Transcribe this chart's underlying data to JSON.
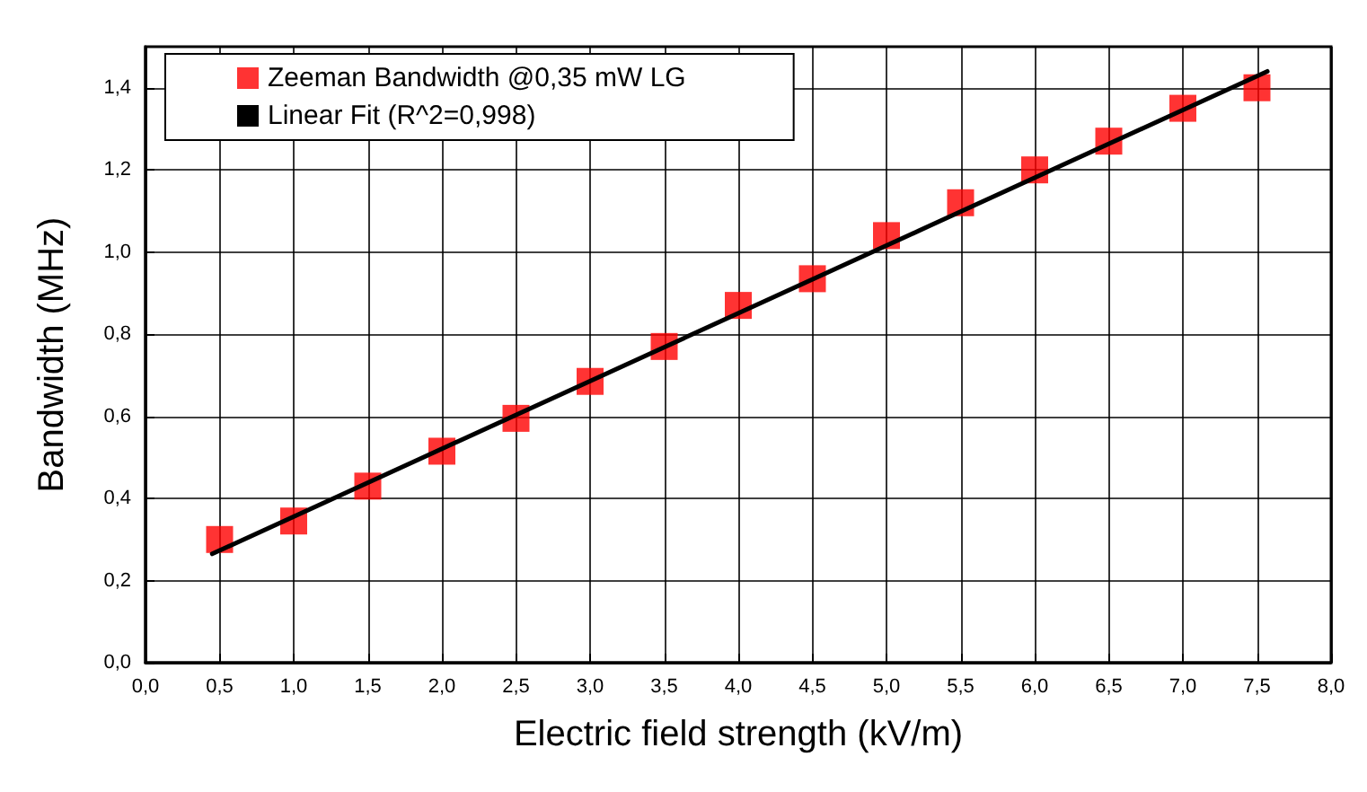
{
  "chart_data": {
    "type": "scatter",
    "xlabel": "Electric field strength (kV/m)",
    "ylabel": "Bandwidth (MHz)",
    "x": [
      0.5,
      1.0,
      1.5,
      2.0,
      2.5,
      3.0,
      3.5,
      4.0,
      4.5,
      5.0,
      5.5,
      6.0,
      6.5,
      7.0,
      7.5
    ],
    "series": [
      {
        "name": "Zeeman Bandwidth @0,35 mW LG",
        "marker": "square",
        "color": "#ff0000",
        "values": [
          0.3,
          0.345,
          0.43,
          0.515,
          0.595,
          0.685,
          0.77,
          0.87,
          0.935,
          1.04,
          1.12,
          1.2,
          1.27,
          1.35,
          1.4
        ]
      },
      {
        "name": "Linear Fit (R^2=0,998)",
        "type": "line",
        "marker": "none",
        "line_style": "solid",
        "color": "#000000",
        "x": [
          0.45,
          7.57
        ],
        "values": [
          0.265,
          1.44
        ]
      }
    ],
    "xlim": [
      0,
      8
    ],
    "xticks": [
      {
        "value": 0,
        "label": "0,0"
      },
      {
        "value": 0.5,
        "label": "0,5"
      },
      {
        "value": 1,
        "label": "1,0"
      },
      {
        "value": 1.5,
        "label": "1,5"
      },
      {
        "value": 2,
        "label": "2,0"
      },
      {
        "value": 2.5,
        "label": "2,5"
      },
      {
        "value": 3,
        "label": "3,0"
      },
      {
        "value": 3.5,
        "label": "3,5"
      },
      {
        "value": 4,
        "label": "4,0"
      },
      {
        "value": 4.5,
        "label": "4,5"
      },
      {
        "value": 5,
        "label": "5,0"
      },
      {
        "value": 5.5,
        "label": "5,5"
      },
      {
        "value": 6,
        "label": "6,0"
      },
      {
        "value": 6.5,
        "label": "6,5"
      },
      {
        "value": 7,
        "label": "7,0"
      },
      {
        "value": 7.5,
        "label": "7,5"
      },
      {
        "value": 8,
        "label": "8,0"
      }
    ],
    "ylim": [
      0,
      1.5
    ],
    "yticks": [
      {
        "value": 0,
        "label": "0,0"
      },
      {
        "value": 0.2,
        "label": "0,2"
      },
      {
        "value": 0.4,
        "label": "0,4"
      },
      {
        "value": 0.6,
        "label": "0,6"
      },
      {
        "value": 0.8,
        "label": "0,8"
      },
      {
        "value": 1.0,
        "label": "1,0"
      },
      {
        "value": 1.2,
        "label": "1,2"
      },
      {
        "value": 1.4,
        "label": "1,4"
      }
    ],
    "grid": true,
    "legend": "top left"
  }
}
